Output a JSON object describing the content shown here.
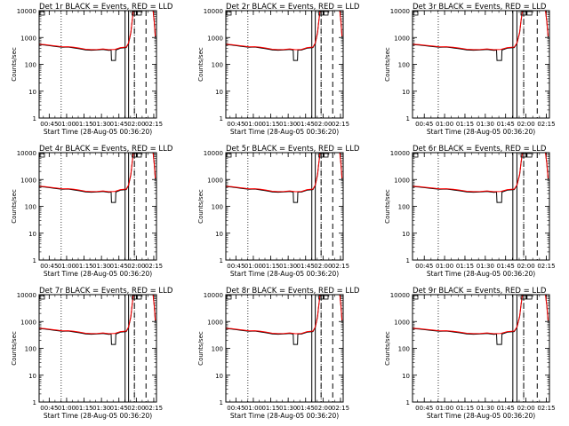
{
  "chart_data": [
    {
      "type": "line",
      "title": "Det 1r BLACK = Events, RED = LLD",
      "variant": "a"
    },
    {
      "type": "line",
      "title": "Det 2r BLACK = Events, RED = LLD",
      "variant": "b"
    },
    {
      "type": "line",
      "title": "Det 3r BLACK = Events, RED = LLD",
      "variant": "a"
    },
    {
      "type": "line",
      "title": "Det 4r BLACK = Events, RED = LLD",
      "variant": "a"
    },
    {
      "type": "line",
      "title": "Det 5r BLACK = Events, RED = LLD",
      "variant": "b"
    },
    {
      "type": "line",
      "title": "Det 6r BLACK = Events, RED = LLD",
      "variant": "a"
    },
    {
      "type": "line",
      "title": "Det 7r BLACK = Events, RED = LLD",
      "variant": "a"
    },
    {
      "type": "line",
      "title": "Det 8r BLACK = Events, RED = LLD",
      "variant": "b"
    },
    {
      "type": "line",
      "title": "Det 9r BLACK = Events, RED = LLD",
      "variant": "a"
    }
  ],
  "common": {
    "xlabel": "Start Time (28-Aug-05 00:36:20)",
    "ylabel": "Counts/sec",
    "yscale": "log",
    "ylim": [
      1,
      10000
    ],
    "ytick_labels": [
      "1",
      "10",
      "100",
      "1000",
      "10000"
    ],
    "xlim_minutes": [
      0,
      101
    ],
    "xtick_labels": [
      "00:45",
      "01:00",
      "01:15",
      "01:30",
      "01:45",
      "02:00",
      "02:15"
    ],
    "xtick_minutes": [
      8.67,
      23.67,
      38.67,
      53.67,
      68.67,
      83.67,
      98.67
    ],
    "events_color": "#000000",
    "lld_color": "#ff0000",
    "events_series": {
      "name": "BLACK = Events",
      "x": [
        0,
        5,
        10,
        15,
        20,
        25,
        30,
        35,
        40,
        45,
        50,
        55,
        60,
        65,
        70,
        75,
        77,
        79,
        80,
        81,
        82,
        83,
        84,
        86,
        88,
        90,
        92,
        94,
        95,
        96,
        97,
        98,
        99,
        100
      ],
      "y": [
        540,
        520,
        490,
        460,
        430,
        440,
        410,
        380,
        345,
        335,
        345,
        360,
        330,
        340,
        400,
        420,
        600,
        1500,
        4000,
        9000,
        11000,
        11000,
        11000,
        11000,
        11000,
        11000,
        11000,
        11000,
        11000,
        11000,
        11000,
        11000,
        4000,
        1000
      ]
    },
    "lld_series": {
      "name": "RED = LLD",
      "x": [
        0,
        5,
        10,
        15,
        20,
        25,
        30,
        35,
        40,
        45,
        50,
        55,
        60,
        65,
        70,
        75,
        77,
        79,
        80,
        81,
        82,
        83,
        84,
        86,
        88,
        90,
        92,
        94,
        95,
        96,
        97,
        98,
        99,
        100
      ],
      "y": [
        560,
        540,
        510,
        480,
        450,
        455,
        430,
        400,
        365,
        355,
        360,
        375,
        350,
        360,
        420,
        440,
        620,
        1600,
        4200,
        9500,
        11000,
        11000,
        11000,
        11000,
        11000,
        11000,
        11000,
        11000,
        11000,
        11000,
        11000,
        11000,
        4200,
        1100
      ]
    },
    "events_dip_a": {
      "x_start": 62,
      "x_end": 66,
      "y": 140
    },
    "events_dip_b": {
      "x_start": 58,
      "x_end": 62,
      "y": 140
    },
    "dotted_vlines_minutes": [
      19,
      82
    ],
    "solid_vlines_minutes": [
      74,
      77
    ],
    "dashed_vlines_minutes": [
      82,
      92
    ],
    "top_box_minutes": [
      [
        80,
        84
      ],
      [
        84.5,
        88
      ]
    ]
  }
}
